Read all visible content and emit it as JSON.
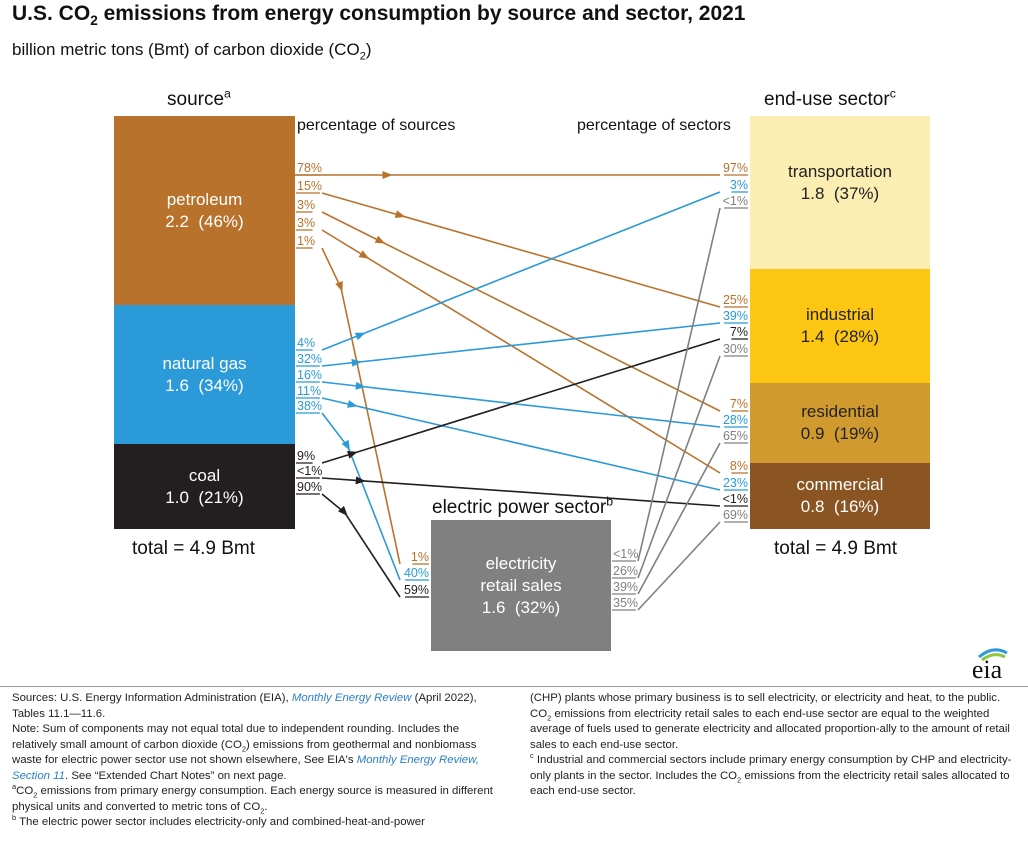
{
  "title": {
    "main": "U.S. CO",
    "sub2": "2",
    "rest": " emissions from energy consumption by source and sector, 2021"
  },
  "subtitle": {
    "main": "billion metric tons (Bmt) of carbon dioxide (CO",
    "sub2": "2",
    "close": ")"
  },
  "headers": {
    "source": "source",
    "source_sup": "a",
    "enduse": "end-use sector",
    "enduse_sup": "c",
    "electric": "electric power sector",
    "electric_sup": "b",
    "pct_sources": "percentage of sources",
    "pct_sectors": "percentage of sectors"
  },
  "sources": [
    {
      "name": "petroleum",
      "value": "2.2  (46%)",
      "color": "#b8722c"
    },
    {
      "name": "natural gas",
      "value": "1.6  (34%)",
      "color": "#2b9ad8"
    },
    {
      "name": "coal",
      "value": "1.0  (21%)",
      "color": "#231f20"
    }
  ],
  "sectors": [
    {
      "name": "transportation",
      "value": "1.8  (37%)",
      "color": "#fcedb3"
    },
    {
      "name": "industrial",
      "value": "1.4  (28%)",
      "color": "#fdc613"
    },
    {
      "name": "residential",
      "value": "0.9  (19%)",
      "color": "#d19a2e"
    },
    {
      "name": "commercial",
      "value": "0.8  (16%)",
      "color": "#8a5522"
    }
  ],
  "electric": {
    "line1": "electricity",
    "line2": "retail sales",
    "value": "1.6  (32%)",
    "color": "#808080"
  },
  "totals": {
    "source": "total = 4.9 Bmt",
    "sector": "total = 4.9 Bmt"
  },
  "labels": {
    "pet_src": [
      "78%",
      "15%",
      "3%",
      "3%",
      "1%"
    ],
    "gas_src": [
      "4%",
      "32%",
      "16%",
      "11%",
      "38%"
    ],
    "coal_src": [
      "9%",
      "<1%",
      "90%"
    ],
    "elec_in": [
      "1%",
      "40%",
      "59%"
    ],
    "elec_out": [
      "<1%",
      "26%",
      "39%",
      "35%"
    ],
    "trans": [
      "97%",
      "3%",
      "<1%"
    ],
    "ind": [
      "25%",
      "39%",
      "7%",
      "30%"
    ],
    "res": [
      "7%",
      "28%",
      "65%"
    ],
    "com": [
      "8%",
      "23%",
      "<1%",
      "69%"
    ]
  },
  "colors": {
    "petroleum": "#b8722c",
    "gas": "#2b9ad8",
    "coal": "#231f20",
    "electric": "#808080"
  },
  "logo": "eia",
  "notes": {
    "left": {
      "s1a": "Sources: U.S. Energy Information Administration (EIA), ",
      "s1link": "Monthly Energy Review",
      "s1b": " (April 2022), Tables 11.1—11.6.",
      "n1a": "Note: Sum of components may not equal total due to independent rounding. Includes the relatively small amount of carbon dioxide (CO",
      "n1b": ") emissions from geothermal and nonbiomass waste for electric power sector use not shown elsewhere, See EIA's ",
      "n1link": "Monthly Energy Review",
      "n1c": ", Section 11",
      "n1d": ". See “Extended Chart Notes” on next page.",
      "a_mark": "a",
      "a1": "CO",
      "a2": " emissions from primary energy consumption. Each energy source is measured in different physical units and converted to metric tons of CO",
      "a3": ".",
      "b_mark": "b",
      "b1": " The electric power sector includes electricity-only and combined-heat-and-power"
    },
    "right": {
      "r1a": "(CHP) plants whose primary business is to sell electricity, or electricity and heat, to the public. CO",
      "r1b": " emissions from electricity retail sales to each end-use sector are equal to the weighted average of fuels used to generate electricity and allocated proportion-ally to the amount of retail sales to each end-use sector.",
      "c_mark": "c",
      "c1": " Industrial and commercial sectors include primary energy consumption by CHP and electricity-only plants in the sector. Includes the CO",
      "c2": " emissions from the electricity retail sales allocated to each end-use sector."
    }
  }
}
